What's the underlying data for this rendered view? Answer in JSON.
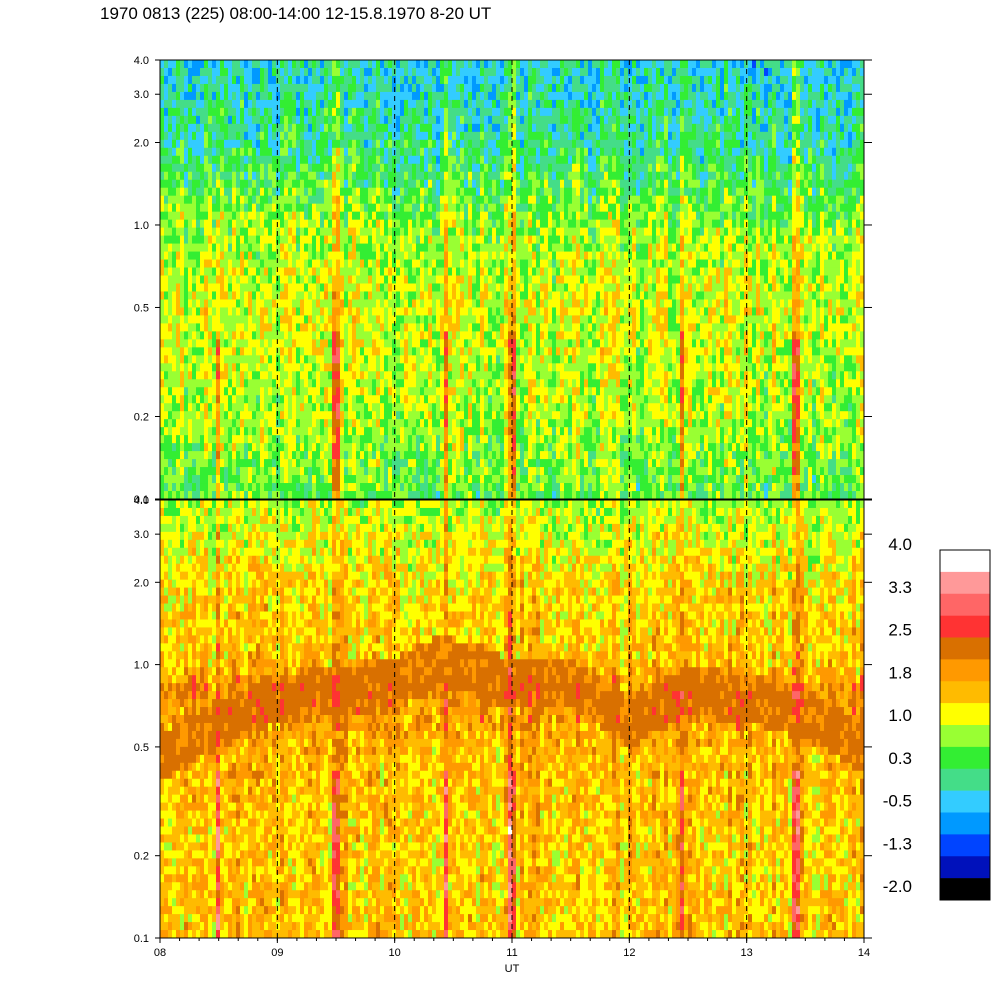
{
  "title": "1970 0813 (225) 08:00-14:00 12-15.8.1970  8-20 UT",
  "chart_data": {
    "type": "heatmap",
    "xlabel": "UT",
    "x_ticks": [
      "08",
      "09",
      "10",
      "11",
      "12",
      "13",
      "14"
    ],
    "x_range": [
      8,
      14
    ],
    "dashed_hours": [
      9,
      10,
      11,
      12,
      13
    ],
    "y_scale": "log",
    "y_ticks": [
      "4.0",
      "3.0",
      "2.0",
      "1.0",
      "0.5",
      "0.2",
      "0.1"
    ],
    "y_tick_values": [
      4.0,
      3.0,
      2.0,
      1.0,
      0.5,
      0.2,
      0.1
    ],
    "y_range": [
      0.1,
      4.0
    ],
    "colorbar": {
      "labels": [
        "4.0",
        "3.3",
        "2.5",
        "1.8",
        "1.0",
        "0.3",
        "-0.5",
        "-1.3",
        "-2.0"
      ],
      "range": [
        -2.0,
        4.0
      ],
      "colors": [
        "#ffffff",
        "#ff9999",
        "#ff6666",
        "#ff3333",
        "#d97000",
        "#ff9900",
        "#ffbb00",
        "#ffff00",
        "#99ff33",
        "#33ee33",
        "#44dd88",
        "#33ccff",
        "#0099ff",
        "#0044ff",
        "#0011bb",
        "#000000"
      ]
    },
    "panels": [
      {
        "name": "upper",
        "base_levels": [
          {
            "y": 0.1,
            "level": 0.5
          },
          {
            "y": 0.2,
            "level": 0.9
          },
          {
            "y": 0.5,
            "level": 1.1
          },
          {
            "y": 1.0,
            "level": 0.8
          },
          {
            "y": 2.0,
            "level": 0.1
          },
          {
            "y": 4.0,
            "level": -0.2
          }
        ]
      },
      {
        "name": "lower",
        "base_levels": [
          {
            "y": 0.1,
            "level": 1.6
          },
          {
            "y": 0.2,
            "level": 1.5
          },
          {
            "y": 0.5,
            "level": 1.7
          },
          {
            "y": 0.8,
            "level": 2.1
          },
          {
            "y": 1.0,
            "level": 1.6
          },
          {
            "y": 2.0,
            "level": 1.4
          },
          {
            "y": 4.0,
            "level": 0.9
          }
        ]
      }
    ],
    "band_lower_panel": [
      {
        "x": 8.0,
        "y": 0.45
      },
      {
        "x": 8.5,
        "y": 0.6
      },
      {
        "x": 9.0,
        "y": 0.75
      },
      {
        "x": 9.5,
        "y": 0.8
      },
      {
        "x": 10.0,
        "y": 0.85
      },
      {
        "x": 10.4,
        "y": 1.05
      },
      {
        "x": 11.0,
        "y": 0.85
      },
      {
        "x": 11.5,
        "y": 0.85
      },
      {
        "x": 12.0,
        "y": 0.6
      },
      {
        "x": 12.5,
        "y": 0.8
      },
      {
        "x": 13.0,
        "y": 0.75
      },
      {
        "x": 13.5,
        "y": 0.65
      },
      {
        "x": 14.0,
        "y": 0.5
      }
    ],
    "spikes": [
      8.5,
      9.5,
      10.45,
      11.0,
      12.45,
      13.42
    ]
  }
}
